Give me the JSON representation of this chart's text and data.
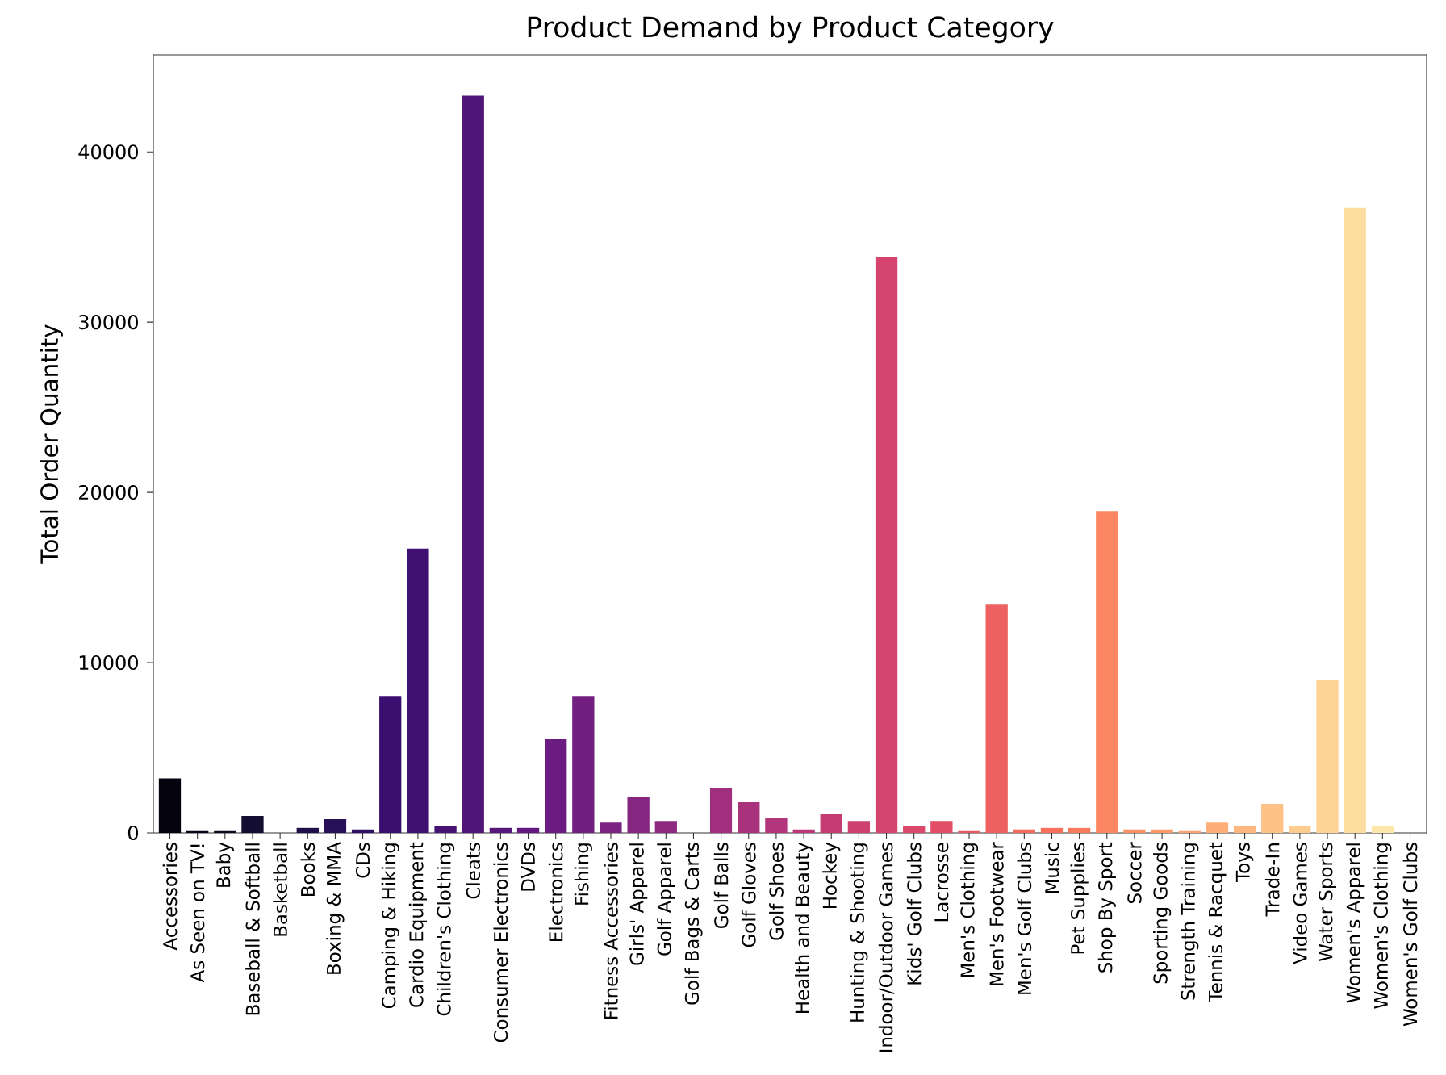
{
  "chart_data": {
    "type": "bar",
    "title": "Product Demand by Product Category",
    "ylabel": "Total Order Quantity",
    "categories": [
      "Accessories",
      "As Seen on  TV!",
      "Baby",
      "Baseball & Softball",
      "Basketball",
      "Books",
      "Boxing & MMA",
      "CDs",
      "Camping & Hiking",
      "Cardio Equipment",
      "Children's Clothing",
      "Cleats",
      "Consumer Electronics",
      "DVDs",
      "Electronics",
      "Fishing",
      "Fitness Accessories",
      "Girls' Apparel",
      "Golf Apparel",
      "Golf Bags & Carts",
      "Golf Balls",
      "Golf Gloves",
      "Golf Shoes",
      "Health and Beauty",
      "Hockey",
      "Hunting & Shooting",
      "Indoor/Outdoor Games",
      "Kids' Golf Clubs",
      "Lacrosse",
      "Men's Clothing",
      "Men's Footwear",
      "Men's Golf Clubs",
      "Music",
      "Pet Supplies",
      "Shop By Sport",
      "Soccer",
      "Sporting Goods",
      "Strength Training",
      "Tennis & Racquet",
      "Toys",
      "Trade-In",
      "Video Games",
      "Water Sports",
      "Women's Apparel",
      "Women's Clothing",
      "Women's Golf Clubs"
    ],
    "values": [
      3200,
      100,
      100,
      1000,
      0,
      300,
      800,
      200,
      8000,
      16700,
      400,
      43300,
      300,
      300,
      5500,
      8000,
      600,
      2100,
      700,
      0,
      2600,
      1800,
      900,
      200,
      1100,
      700,
      33800,
      400,
      700,
      100,
      13400,
      200,
      300,
      300,
      18900,
      200,
      200,
      100,
      600,
      400,
      1700,
      400,
      9000,
      36700,
      400,
      null
    ],
    "colors": [
      "#04030f",
      "#080616",
      "#0d0a22",
      "#120d31",
      "#160f3b",
      "#1f1049",
      "#281159",
      "#311165",
      "#3a0f6f",
      "#3f1172",
      "#461375",
      "#4f1578",
      "#58177c",
      "#63197f",
      "#6b1c81",
      "#721f81",
      "#7b2382",
      "#852681",
      "#8d2981",
      "#972c80",
      "#a02f7f",
      "#a9327d",
      "#b3357b",
      "#bb3878",
      "#c53c74",
      "#cd4070",
      "#d5446d",
      "#dc4869",
      "#e24e65",
      "#e85862",
      "#ed6160",
      "#f36a5d",
      "#f7715c",
      "#f97b5d",
      "#fb8661",
      "#fc9065",
      "#fd9a6a",
      "#fea370",
      "#feae77",
      "#feb77e",
      "#fec186",
      "#fecc8f",
      "#fed597",
      "#fddea0",
      "#fde8aa",
      "#fcf1b4"
    ],
    "ylim": [
      0,
      45700
    ],
    "yticks": [
      0,
      10000,
      20000,
      30000,
      40000
    ]
  }
}
